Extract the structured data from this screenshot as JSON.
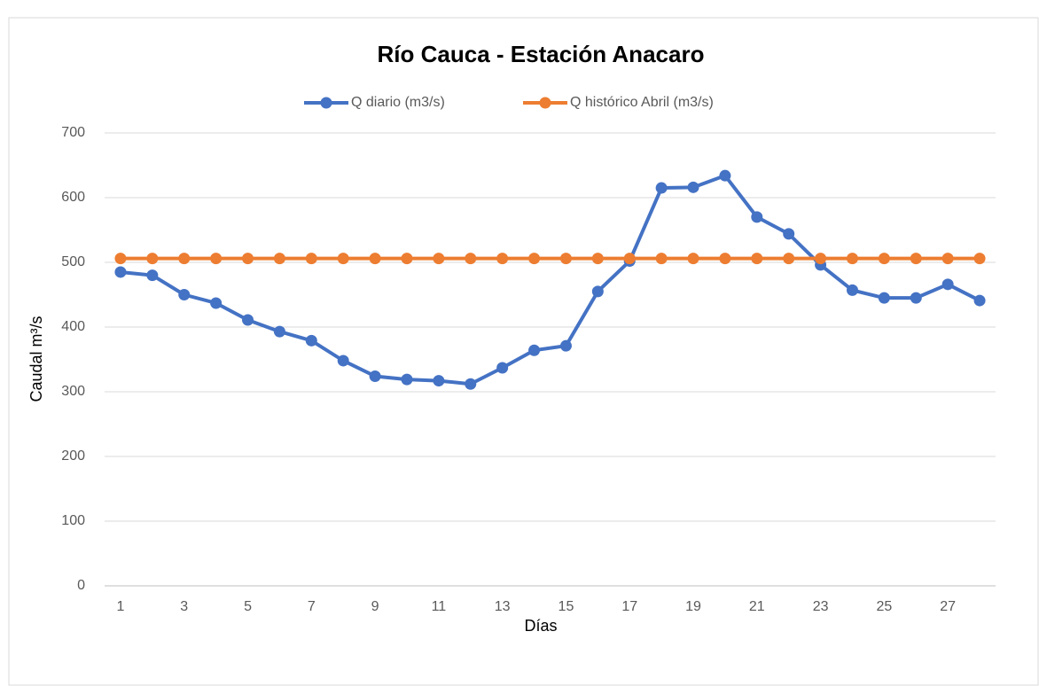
{
  "chart_data": {
    "type": "line",
    "title": "Río Cauca - Estación Anacaro",
    "x_label": "Días",
    "y_label": "Caudal m³/s",
    "categories": [
      "1",
      null,
      "3",
      null,
      "5",
      null,
      "7",
      null,
      "9",
      null,
      "11",
      null,
      "13",
      null,
      "15",
      null,
      "17",
      null,
      "19",
      null,
      "21",
      null,
      "23",
      null,
      "25",
      null,
      "27",
      null
    ],
    "series": [
      {
        "name": "Q diario (m3/s)",
        "color": "#4472c4",
        "values": [
          485,
          480,
          450,
          437,
          411,
          393,
          379,
          348,
          324,
          319,
          317,
          312,
          337,
          364,
          371,
          455,
          502,
          615,
          616,
          634,
          570,
          544,
          496,
          457,
          445,
          445,
          466,
          441
        ]
      },
      {
        "name": "Q histórico Abril (m3/s)",
        "color": "#ed7d31",
        "values": [
          506,
          506,
          506,
          506,
          506,
          506,
          506,
          506,
          506,
          506,
          506,
          506,
          506,
          506,
          506,
          506,
          506,
          506,
          506,
          506,
          506,
          506,
          506,
          506,
          506,
          506,
          506,
          506
        ]
      }
    ],
    "ylim": [
      0,
      700
    ],
    "yticks": [
      0,
      100,
      200,
      300,
      400,
      500,
      600,
      700
    ],
    "grid": true,
    "legend": "top"
  }
}
